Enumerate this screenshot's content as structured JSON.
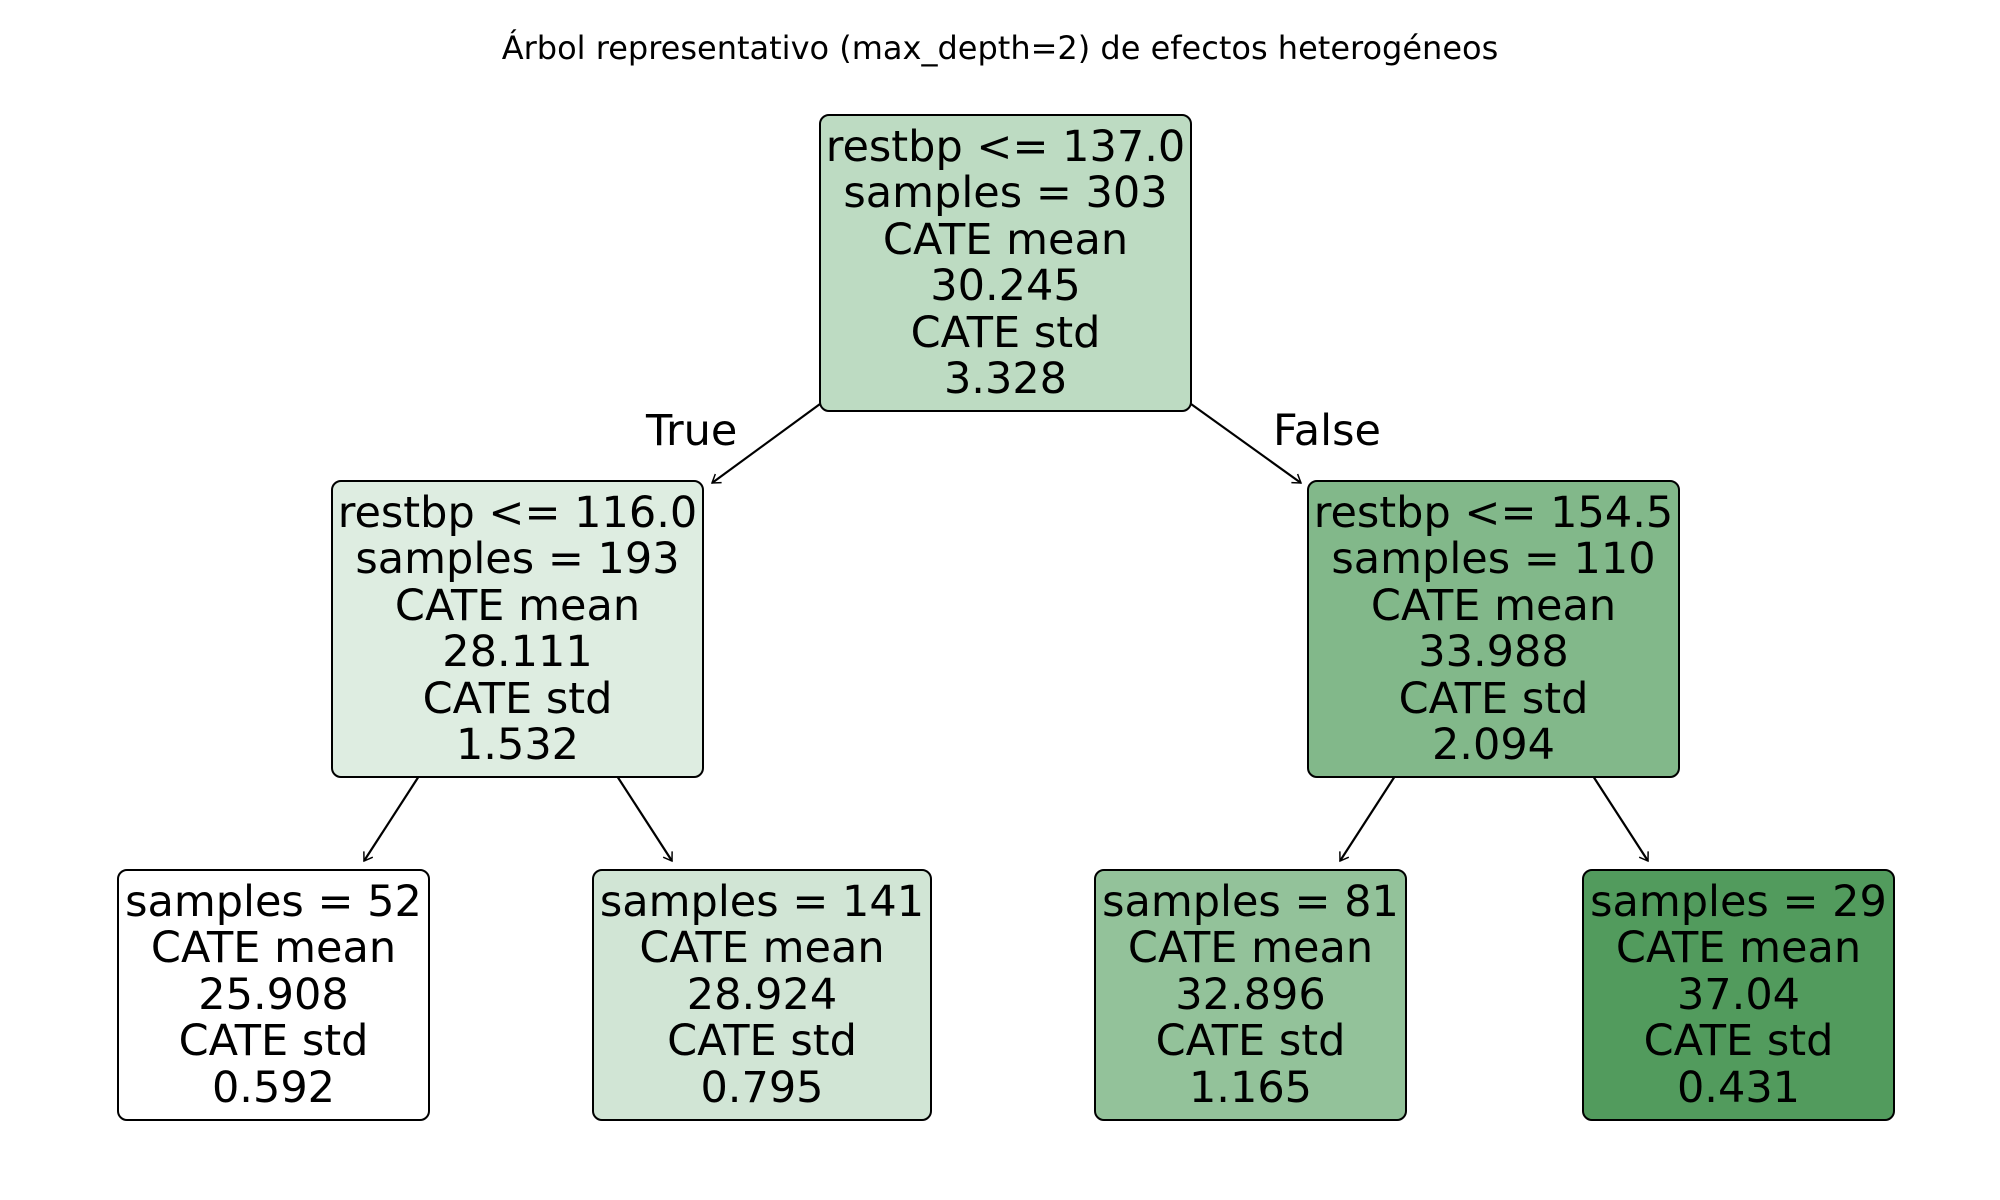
{
  "title": "Árbol representativo (max_depth=2) de efectos heterogéneos",
  "edge_labels": {
    "true": "True",
    "false": "False"
  },
  "nodes": {
    "root": {
      "lines": [
        "restbp <= 137.0",
        "samples = 303",
        "CATE mean",
        "30.245",
        "CATE std",
        "3.328"
      ],
      "fill": "#bddbc2"
    },
    "left": {
      "lines": [
        "restbp <= 116.0",
        "samples = 193",
        "CATE mean",
        "28.111",
        "CATE std",
        "1.532"
      ],
      "fill": "#deede1"
    },
    "right": {
      "lines": [
        "restbp <= 154.5",
        "samples = 110",
        "CATE mean",
        "33.988",
        "CATE std",
        "2.094"
      ],
      "fill": "#82b88a"
    },
    "leaf_1": {
      "lines": [
        "samples = 52",
        "CATE mean",
        "25.908",
        "CATE std",
        "0.592"
      ],
      "fill": "#ffffff"
    },
    "leaf_2": {
      "lines": [
        "samples = 141",
        "CATE mean",
        "28.924",
        "CATE std",
        "0.795"
      ],
      "fill": "#d1e5d5"
    },
    "leaf_3": {
      "lines": [
        "samples = 81",
        "CATE mean",
        "32.896",
        "CATE std",
        "1.165"
      ],
      "fill": "#93c29a"
    },
    "leaf_4": {
      "lines": [
        "samples = 29",
        "CATE mean",
        "37.04",
        "CATE std",
        "0.431"
      ],
      "fill": "#529b5d"
    }
  }
}
